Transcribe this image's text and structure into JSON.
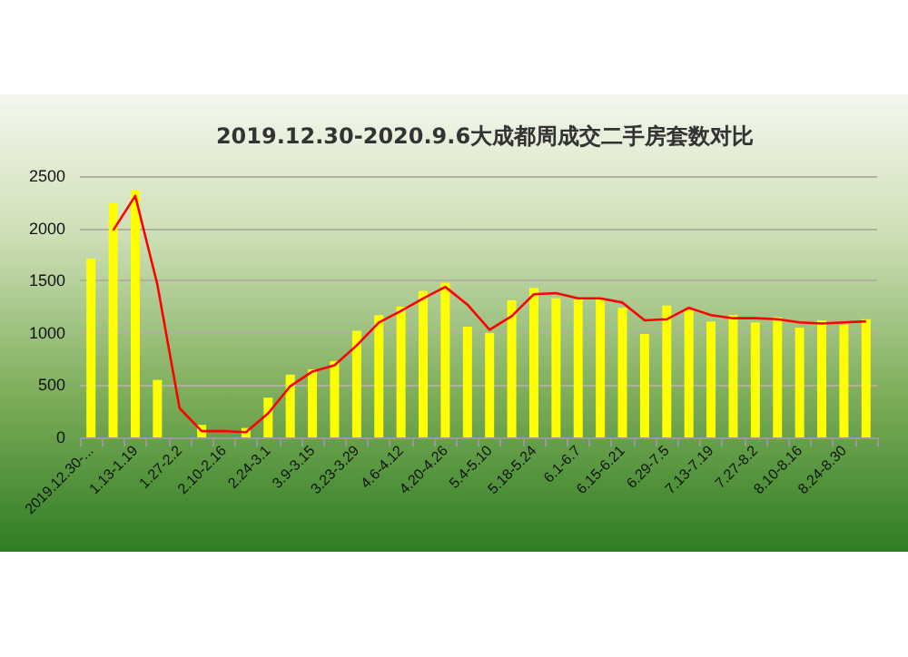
{
  "chart_data": {
    "type": "bar",
    "title": "2019.12.30-2020.9.6大成都周成交二手房套数对比",
    "categories": [
      "2019.12.30-...",
      null,
      "1.13-1.19",
      null,
      "1.27-2.2",
      null,
      "2.10-2.16",
      null,
      "2.24-3.1",
      null,
      "3.9-3.15",
      null,
      "3.23-3.29",
      null,
      "4.6-4.12",
      null,
      "4.20-4.26",
      null,
      "5.4-5.10",
      null,
      "5.18-5.24",
      null,
      "6.1-6.7",
      null,
      "6.15-6.21",
      null,
      "6.29-7.5",
      null,
      "7.13-7.19",
      null,
      "7.27-8.2",
      null,
      "8.10-8.16",
      null,
      "8.24-8.30",
      null
    ],
    "series": [
      {
        "color": "#ffff00",
        "values": [
          1710,
          2240,
          2370,
          550,
          0,
          120,
          0,
          90,
          380,
          600,
          650,
          730,
          1020,
          1170,
          1250,
          1400,
          1480,
          1060,
          1000,
          1310,
          1430,
          1330,
          1320,
          1340,
          1240,
          990,
          1260,
          1220,
          1110,
          1170,
          1100,
          1150,
          1050,
          1120,
          1080,
          1130
        ]
      },
      {
        "type": "line",
        "color": "#ff0000",
        "values": [
          null,
          1980,
          2310,
          1460,
          280,
          60,
          60,
          50,
          230,
          490,
          630,
          690,
          880,
          1100,
          1210,
          1330,
          1440,
          1270,
          1030,
          1160,
          1370,
          1380,
          1330,
          1330,
          1290,
          1120,
          1130,
          1240,
          1170,
          1140,
          1140,
          1130,
          1100,
          1090,
          1100,
          1110
        ]
      }
    ],
    "ylim": [
      0,
      2500
    ],
    "yticks": [
      0,
      500,
      1000,
      1500,
      2000,
      2500
    ],
    "grid": "y",
    "marker": "none",
    "line_style": "solid"
  }
}
